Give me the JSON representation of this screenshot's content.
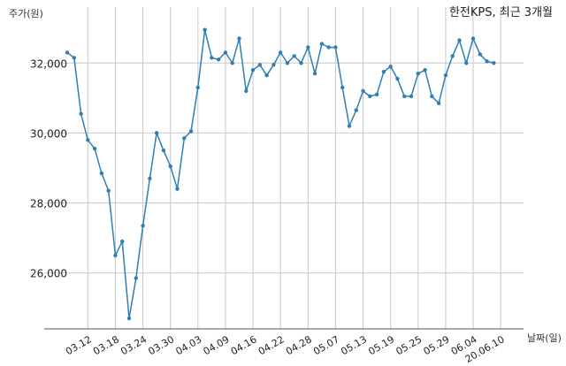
{
  "chart_data": {
    "type": "line",
    "title": "한전KPS, 최근 3개월",
    "ylabel": "주가(원)",
    "xlabel": "날짜(일)",
    "ylim": [
      24400,
      33600
    ],
    "yticks": [
      {
        "value": 26000,
        "label": "26,000"
      },
      {
        "value": 28000,
        "label": "28,000"
      },
      {
        "value": 30000,
        "label": "30,000"
      },
      {
        "value": 32000,
        "label": "32,000"
      }
    ],
    "xticks": [
      {
        "index": 3,
        "label": "03.12"
      },
      {
        "index": 7,
        "label": "03.18"
      },
      {
        "index": 11,
        "label": "03.24"
      },
      {
        "index": 15,
        "label": "03.30"
      },
      {
        "index": 19,
        "label": "04.03"
      },
      {
        "index": 23,
        "label": "04.09"
      },
      {
        "index": 27,
        "label": "04.16"
      },
      {
        "index": 31,
        "label": "04.22"
      },
      {
        "index": 35,
        "label": "04.28"
      },
      {
        "index": 39,
        "label": "05.07"
      },
      {
        "index": 43,
        "label": "05.13"
      },
      {
        "index": 47,
        "label": "05.19"
      },
      {
        "index": 51,
        "label": "05.25"
      },
      {
        "index": 55,
        "label": "05.29"
      },
      {
        "index": 59,
        "label": "06.04"
      },
      {
        "index": 63,
        "label": "20.06.10"
      }
    ],
    "grid": true,
    "color": "#2f7fb5",
    "values": [
      32300,
      32150,
      30550,
      29800,
      29550,
      28850,
      28350,
      26500,
      26900,
      24700,
      25850,
      27350,
      28700,
      30000,
      29500,
      29050,
      28400,
      29850,
      30050,
      31300,
      32950,
      32150,
      32100,
      32300,
      32000,
      32700,
      31200,
      31800,
      31950,
      31650,
      31950,
      32300,
      32000,
      32200,
      32000,
      32450,
      31700,
      32550,
      32450,
      32450,
      31300,
      30200,
      30650,
      31200,
      31050,
      31100,
      31750,
      31900,
      31550,
      31050,
      31050,
      31700,
      31800,
      31050,
      30850,
      31650,
      32200,
      32650,
      32000,
      32700,
      32250,
      32050,
      32000
    ]
  }
}
